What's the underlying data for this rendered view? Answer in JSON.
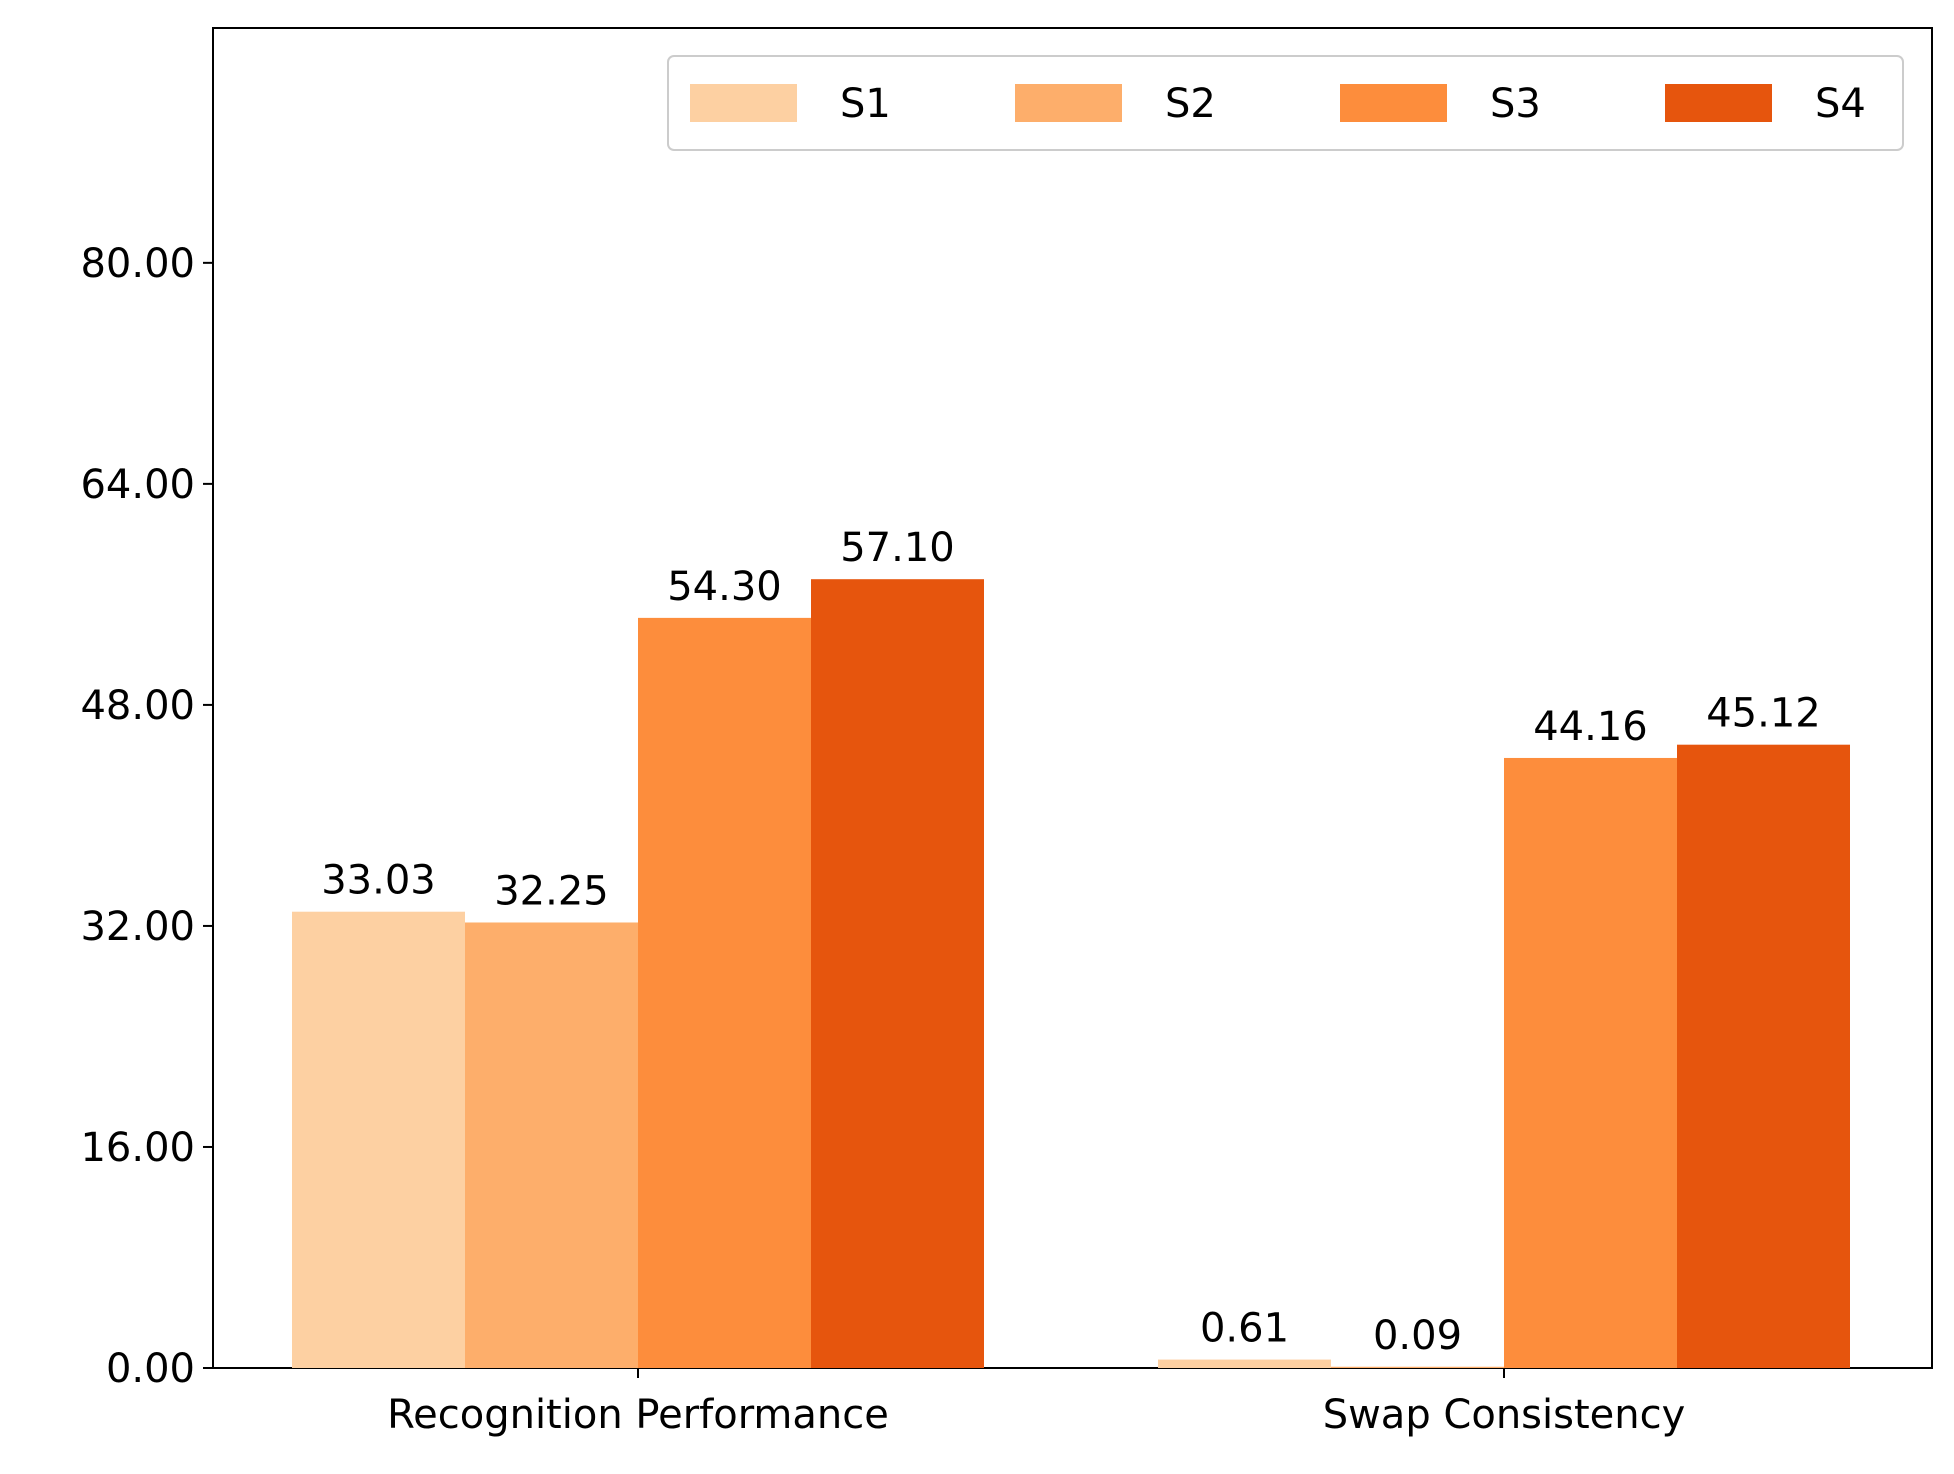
{
  "chart_data": {
    "type": "bar",
    "title": "",
    "xlabel": "",
    "ylabel": "",
    "categories": [
      "Recognition Performance",
      "Swap Consistency"
    ],
    "series": [
      {
        "name": "S1",
        "color": "#fdd0a2",
        "values": [
          33.03,
          0.61
        ],
        "labels": [
          "33.03",
          "0.61"
        ]
      },
      {
        "name": "S2",
        "color": "#fdae6b",
        "values": [
          32.25,
          0.09
        ],
        "labels": [
          "32.25",
          "0.09"
        ]
      },
      {
        "name": "S3",
        "color": "#fd8d3c",
        "values": [
          54.3,
          44.16
        ],
        "labels": [
          "54.30",
          "44.16"
        ]
      },
      {
        "name": "S4",
        "color": "#e6550d",
        "values": [
          57.1,
          45.12
        ],
        "labels": [
          "57.10",
          "45.12"
        ]
      }
    ],
    "yticks": [
      0,
      16,
      32,
      48,
      64,
      80
    ],
    "ytick_labels": [
      "0.00",
      "16.00",
      "32.00",
      "48.00",
      "64.00",
      "80.00"
    ],
    "ylim": [
      0,
      97
    ],
    "grid": false,
    "legend_position": "top-right",
    "legend_columns": 4
  }
}
